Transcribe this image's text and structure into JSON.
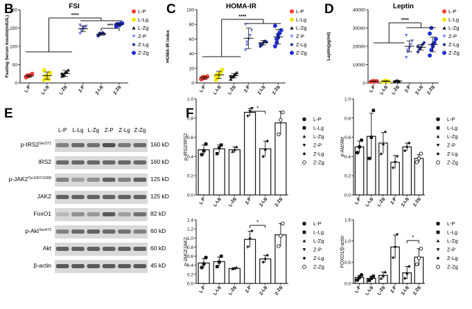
{
  "panel_letters": {
    "B": "B",
    "C": "C",
    "D": "D",
    "E": "E",
    "F": "F"
  },
  "colors": {
    "L-P": "#ff3b30",
    "L-Lg": "#f2e600",
    "L-Zg": "#111111",
    "Z-P": "#7b86e0",
    "Z-Lg": "#1a2b8c",
    "Z-Zg": "#1f2fd6",
    "western_band": "#3a3a3a",
    "western_bg": "#d9d9d9"
  },
  "chart_data": [
    {
      "id": "B",
      "type": "scatter",
      "title": "FSI",
      "xlabel": "",
      "ylabel": "Fasting Serum Insulin(mIU/L)",
      "categories": [
        "L-P",
        "L-Lg",
        "L-Zg",
        "Z-P",
        "Z-Lg",
        "Z-Zg"
      ],
      "ylim": [
        0,
        200
      ],
      "yticks": [
        0,
        50,
        100,
        150,
        200
      ],
      "points": [
        [
          15,
          18,
          20,
          22,
          25,
          17,
          21,
          19
        ],
        [
          8,
          12,
          18,
          22,
          28,
          35,
          20,
          15,
          10
        ],
        [
          18,
          22,
          28,
          30,
          35,
          25,
          20
        ],
        [
          135,
          142,
          148,
          150,
          155,
          158,
          145,
          152
        ],
        [
          128,
          132,
          135,
          137,
          134,
          130,
          136
        ],
        [
          155,
          158,
          160,
          162,
          163,
          159,
          161,
          157
        ]
      ],
      "means": [
        19,
        20,
        26,
        148,
        133,
        160
      ],
      "sds": [
        3,
        10,
        8,
        8,
        3,
        3
      ],
      "legend": [
        "L-P",
        "L-Lg",
        "L-Zg",
        "Z-P",
        "Z-Lg",
        "Z-Zg"
      ],
      "annotations": [
        {
          "text": "****"
        },
        {
          "text": "***"
        }
      ]
    },
    {
      "id": "C",
      "type": "scatter",
      "title": "HOMA-IR",
      "xlabel": "",
      "ylabel": "HOMA-IR index",
      "categories": [
        "L-P",
        "L-Lg",
        "L-Zg",
        "Z-P",
        "Z-Lg",
        "Z-Zg"
      ],
      "ylim": [
        0,
        100
      ],
      "yticks": [
        0,
        20,
        40,
        60,
        80,
        100
      ],
      "points": [
        [
          5,
          6,
          8,
          7,
          9,
          6,
          8
        ],
        [
          4,
          7,
          10,
          14,
          18,
          9,
          12
        ],
        [
          5,
          8,
          10,
          12,
          14,
          9
        ],
        [
          45,
          52,
          60,
          65,
          72,
          80,
          56
        ],
        [
          50,
          52,
          55,
          57,
          56,
          53
        ],
        [
          50,
          55,
          62,
          68,
          72,
          78,
          60,
          66
        ]
      ],
      "means": [
        7,
        11,
        10,
        61,
        55,
        63
      ],
      "sds": [
        2,
        5,
        3,
        14,
        3,
        10
      ],
      "legend": [
        "L-P",
        "L-Lg",
        "L-Zg",
        "Z-P",
        "Z-Lg",
        "Z-Zg"
      ],
      "annotations": [
        {
          "text": "****"
        }
      ]
    },
    {
      "id": "D",
      "type": "scatter",
      "title": "Leptin",
      "xlabel": "",
      "ylabel": "Leptin(pg/ml)",
      "categories": [
        "L-P",
        "L-Lg",
        "L-Zg",
        "Z-P",
        "Z-Lg",
        "Z-Zg"
      ],
      "ylim": [
        0,
        40000
      ],
      "yticks": [
        0,
        10000,
        20000,
        30000,
        40000
      ],
      "points": [
        [
          600,
          900,
          1100,
          800,
          1000,
          700
        ],
        [
          700,
          900,
          1200,
          1000,
          800
        ],
        [
          800,
          1100,
          1300,
          900
        ],
        [
          14000,
          17000,
          19000,
          21000,
          23000,
          26000,
          18000
        ],
        [
          17000,
          18500,
          19500,
          21000,
          22000,
          20000
        ],
        [
          15000,
          18000,
          20000,
          22000,
          24000,
          27000,
          30000,
          21000
        ]
      ],
      "means": [
        900,
        950,
        1100,
        20000,
        19500,
        21000
      ],
      "sds": [
        200,
        200,
        200,
        3000,
        1500,
        4000
      ],
      "legend": [
        "L-P",
        "L-Lg",
        "L-Zg",
        "Z-P",
        "Z-Lg",
        "Z-Zg"
      ],
      "annotations": [
        {
          "text": "****"
        }
      ]
    },
    {
      "id": "F1",
      "type": "bar",
      "xlabel": "",
      "ylabel": "p-IRS2/IRS2",
      "categories": [
        "L-P",
        "L-Lg",
        "L-Zg",
        "Z-P",
        "Z-Lg",
        "Z-Zg"
      ],
      "values": [
        0.47,
        0.48,
        0.47,
        0.86,
        0.48,
        0.75
      ],
      "errors": [
        0.05,
        0.04,
        0.03,
        0.04,
        0.08,
        0.12
      ],
      "points": [
        [
          0.42,
          0.46,
          0.53
        ],
        [
          0.43,
          0.49,
          0.52
        ],
        [
          0.45,
          0.47,
          0.5
        ],
        [
          0.82,
          0.87,
          0.9
        ],
        [
          0.4,
          0.47,
          0.56
        ],
        [
          0.63,
          0.78,
          0.86
        ]
      ],
      "ylim": [
        0,
        1.0
      ],
      "yticks": [
        "0.0",
        "0.2",
        "0.4",
        "0.6",
        "0.8",
        "1.0"
      ],
      "legend": [
        "L-P",
        "L-Lg",
        "L-Zg",
        "Z-P",
        "Z-Lg",
        "Z-Zg"
      ],
      "annotations": [
        {
          "text": "*"
        }
      ]
    },
    {
      "id": "F2",
      "type": "bar",
      "xlabel": "",
      "ylabel": "p-Akt/Akt",
      "categories": [
        "L-P",
        "L-Lg",
        "L-Zg",
        "Z-P",
        "Z-Lg",
        "Z-Zg"
      ],
      "values": [
        0.5,
        0.61,
        0.54,
        0.34,
        0.5,
        0.38
      ],
      "errors": [
        0.06,
        0.24,
        0.11,
        0.07,
        0.04,
        0.04
      ],
      "points": [
        [
          0.44,
          0.5,
          0.57
        ],
        [
          0.38,
          0.6,
          0.88
        ],
        [
          0.43,
          0.53,
          0.66
        ],
        [
          0.28,
          0.34,
          0.4
        ],
        [
          0.46,
          0.5,
          0.54
        ],
        [
          0.34,
          0.38,
          0.43
        ]
      ],
      "ylim": [
        0,
        1.0
      ],
      "yticks": [
        "0.0",
        "0.2",
        "0.4",
        "0.6",
        "0.8",
        "1.0"
      ],
      "legend": [
        "L-P",
        "L-Lg",
        "L-Zg",
        "Z-P",
        "Z-Lg",
        "Z-Zg"
      ]
    },
    {
      "id": "F3",
      "type": "bar",
      "xlabel": "",
      "ylabel": "p-JAK2/JAK2",
      "categories": [
        "L-P",
        "L-Lg",
        "L-Zg",
        "Z-P",
        "Z-Lg",
        "Z-Zg"
      ],
      "values": [
        0.45,
        0.48,
        0.33,
        0.97,
        0.54,
        1.07
      ],
      "errors": [
        0.1,
        0.1,
        0.02,
        0.18,
        0.08,
        0.25
      ],
      "points": [
        [
          0.35,
          0.43,
          0.57
        ],
        [
          0.37,
          0.47,
          0.6
        ],
        [
          0.32,
          0.33,
          0.35
        ],
        [
          0.8,
          0.98,
          1.15
        ],
        [
          0.47,
          0.54,
          0.62
        ],
        [
          0.82,
          1.05,
          1.32
        ]
      ],
      "ylim": [
        0,
        1.4
      ],
      "yticks": [
        "0.0",
        "0.2",
        "0.4",
        "0.6",
        "0.8",
        "1.0",
        "1.2",
        "1.4"
      ],
      "legend": [
        "L-P",
        "L-Lg",
        "L-Zg",
        "Z-P",
        "Z-Lg",
        "Z-Zg"
      ],
      "annotations": [
        {
          "text": "*"
        }
      ]
    },
    {
      "id": "F4",
      "type": "bar",
      "xlabel": "",
      "ylabel": "FOXO1/β-actin",
      "categories": [
        "L-P",
        "L-Lg",
        "L-Zg",
        "Z-P",
        "Z-Lg",
        "Z-Zg"
      ],
      "values": [
        0.14,
        0.12,
        0.19,
        0.86,
        0.25,
        0.62
      ],
      "errors": [
        0.05,
        0.05,
        0.08,
        0.28,
        0.15,
        0.2
      ],
      "points": [
        [
          0.08,
          0.14,
          0.2
        ],
        [
          0.07,
          0.12,
          0.17
        ],
        [
          0.12,
          0.18,
          0.27
        ],
        [
          0.6,
          0.85,
          1.15
        ],
        [
          0.12,
          0.23,
          0.4
        ],
        [
          0.45,
          0.6,
          0.82
        ]
      ],
      "ylim": [
        0,
        1.5
      ],
      "yticks": [
        "0.0",
        "0.5",
        "1.0",
        "1.5"
      ],
      "legend": [
        "L-P",
        "L-Lg",
        "L-Zg",
        "Z-P",
        "Z-Lg",
        "Z-Zg"
      ],
      "annotations": [
        {
          "text": "*"
        }
      ]
    }
  ],
  "western": {
    "lanes": [
      "L-P",
      "L-Lg",
      "L-Zg",
      "Z-P",
      "Z-Lg",
      "Z-Zg"
    ],
    "rows": [
      {
        "label": "p-IRS2",
        "sup": "Ser371",
        "size": "160 kD",
        "intensity": [
          0.55,
          0.7,
          0.65,
          0.85,
          0.6,
          0.7
        ]
      },
      {
        "label": "IRS2",
        "sup": "",
        "size": "160 kD",
        "intensity": [
          0.7,
          0.7,
          0.7,
          0.7,
          0.7,
          0.7
        ]
      },
      {
        "label": "p-JAK2",
        "sup": "Tyr1007/1008",
        "size": "125 kD",
        "intensity": [
          0.55,
          0.35,
          0.45,
          0.75,
          0.55,
          0.75
        ]
      },
      {
        "label": "JAK2",
        "sup": "",
        "size": "125 kD",
        "intensity": [
          0.75,
          0.75,
          0.75,
          0.75,
          0.75,
          0.75
        ]
      },
      {
        "label": "FoxO1",
        "sup": "",
        "size": "82 kD",
        "intensity": [
          0.2,
          0.45,
          0.4,
          0.8,
          0.35,
          0.65
        ]
      },
      {
        "label": "p-Akt",
        "sup": "Ser473",
        "size": "60 kD",
        "intensity": [
          0.55,
          0.7,
          0.75,
          0.7,
          0.65,
          0.55
        ]
      },
      {
        "label": "Akt",
        "sup": "",
        "size": "60 kD",
        "intensity": [
          0.75,
          0.75,
          0.75,
          0.75,
          0.75,
          0.75
        ]
      },
      {
        "label": "β-actin",
        "sup": "",
        "size": "45 kD",
        "intensity": [
          0.8,
          0.8,
          0.8,
          0.8,
          0.8,
          0.8
        ]
      }
    ]
  }
}
